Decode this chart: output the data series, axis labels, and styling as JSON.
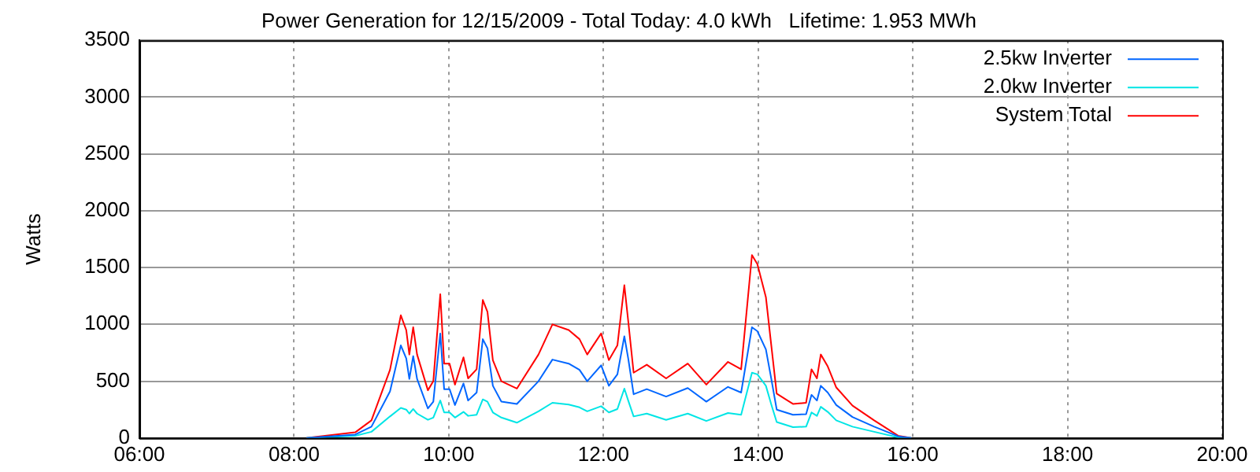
{
  "chart_data": {
    "type": "line",
    "title": "Power Generation for 12/15/2009 - Total Today: 4.0 kWh   Lifetime: 1.953 MWh",
    "ylabel": "Watts",
    "x": [
      8.16,
      8.79,
      9.0,
      9.24,
      9.38,
      9.45,
      9.49,
      9.54,
      9.59,
      9.73,
      9.8,
      9.89,
      9.94,
      10.01,
      10.08,
      10.19,
      10.25,
      10.36,
      10.44,
      10.5,
      10.57,
      10.68,
      10.88,
      11.16,
      11.34,
      11.55,
      11.69,
      11.79,
      11.97,
      12.07,
      12.18,
      12.27,
      12.32,
      12.39,
      12.56,
      12.81,
      13.09,
      13.33,
      13.61,
      13.78,
      13.92,
      13.99,
      14.1,
      14.17,
      14.24,
      14.45,
      14.62,
      14.69,
      14.76,
      14.81,
      14.9,
      15.01,
      15.22,
      15.5,
      15.81,
      15.98
    ],
    "series": [
      {
        "name": "2.5kw Inverter",
        "color": "#0066ff",
        "values": [
          0,
          30,
          100,
          410,
          815,
          700,
          520,
          720,
          520,
          260,
          320,
          920,
          430,
          430,
          290,
          480,
          330,
          400,
          870,
          790,
          460,
          320,
          300,
          500,
          690,
          655,
          600,
          500,
          640,
          460,
          560,
          895,
          700,
          385,
          430,
          365,
          440,
          320,
          450,
          400,
          975,
          940,
          780,
          520,
          250,
          205,
          210,
          380,
          330,
          460,
          400,
          290,
          185,
          100,
          15,
          0
        ]
      },
      {
        "name": "2.0kw Inverter",
        "color": "#00e5e5",
        "values": [
          0,
          20,
          55,
          190,
          265,
          250,
          215,
          255,
          215,
          160,
          180,
          330,
          225,
          225,
          180,
          230,
          195,
          205,
          340,
          320,
          225,
          180,
          135,
          235,
          310,
          295,
          270,
          235,
          280,
          225,
          255,
          435,
          330,
          190,
          215,
          160,
          215,
          150,
          220,
          205,
          575,
          560,
          460,
          295,
          140,
          95,
          100,
          225,
          195,
          275,
          230,
          155,
          100,
          55,
          5,
          0
        ]
      },
      {
        "name": "System Total",
        "color": "#ff0000",
        "values": [
          0,
          50,
          155,
          600,
          1080,
          950,
          735,
          975,
          735,
          420,
          500,
          1265,
          655,
          655,
          470,
          710,
          525,
          605,
          1215,
          1110,
          685,
          500,
          435,
          735,
          1000,
          950,
          870,
          735,
          920,
          685,
          815,
          1345,
          1030,
          575,
          645,
          525,
          655,
          470,
          670,
          605,
          1610,
          1530,
          1240,
          815,
          390,
          300,
          310,
          605,
          525,
          735,
          630,
          445,
          285,
          155,
          20,
          0
        ]
      }
    ],
    "xlim": [
      6,
      20
    ],
    "xticks": [
      {
        "value": 6,
        "label": "06:00"
      },
      {
        "value": 8,
        "label": "08:00"
      },
      {
        "value": 10,
        "label": "10:00"
      },
      {
        "value": 12,
        "label": "12:00"
      },
      {
        "value": 14,
        "label": "14:00"
      },
      {
        "value": 16,
        "label": "16:00"
      },
      {
        "value": 18,
        "label": "18:00"
      },
      {
        "value": 20,
        "label": "20:00"
      }
    ],
    "ylim": [
      0,
      3500
    ],
    "yticks": [
      0,
      500,
      1000,
      1500,
      2000,
      2500,
      3000,
      3500
    ],
    "grid": true,
    "legend": "top right",
    "marker": "none",
    "line_style": "solid"
  }
}
